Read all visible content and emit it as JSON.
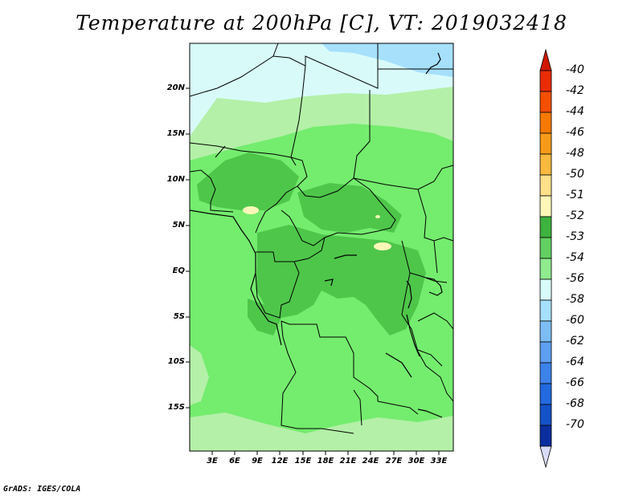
{
  "title": "Temperature at 200hPa [C], VT: 2019032418",
  "credit": "GrADS: IGES/COLA",
  "map": {
    "lat_labels": [
      "20N",
      "15N",
      "10N",
      "5N",
      "EQ",
      "5S",
      "10S",
      "15S"
    ],
    "lon_labels": [
      "3E",
      "6E",
      "9E",
      "12E",
      "15E",
      "18E",
      "21E",
      "24E",
      "27E",
      "30E",
      "33E"
    ]
  },
  "colorbar": {
    "labels": [
      "-40",
      "-42",
      "-44",
      "-46",
      "-48",
      "-50",
      "-51",
      "-52",
      "-53",
      "-54",
      "-56",
      "-58",
      "-60",
      "-62",
      "-64",
      "-66",
      "-68",
      "-70"
    ],
    "colors": [
      "#e82c00",
      "#f24f00",
      "#f77a00",
      "#f99b1a",
      "#fbb940",
      "#fde08a",
      "#fef7b8",
      "#3eb23e",
      "#63d062",
      "#90ea8e",
      "#d8fbfa",
      "#a6e0fb",
      "#7dbdf5",
      "#5e9ff0",
      "#3c82ea",
      "#226ae0",
      "#1452c8",
      "#0a2e9e"
    ],
    "arrow_top_color": "#d01800",
    "arrow_bottom_color": "#d9dcf6"
  },
  "field_colors": {
    "pale_blue": "#d8fbfa",
    "light_blue": "#a6e0fb",
    "light_green": "#b4f0a8",
    "green_53": "#74ec6e",
    "green_52": "#4ec64a",
    "yellow_51": "#fef7b8"
  }
}
